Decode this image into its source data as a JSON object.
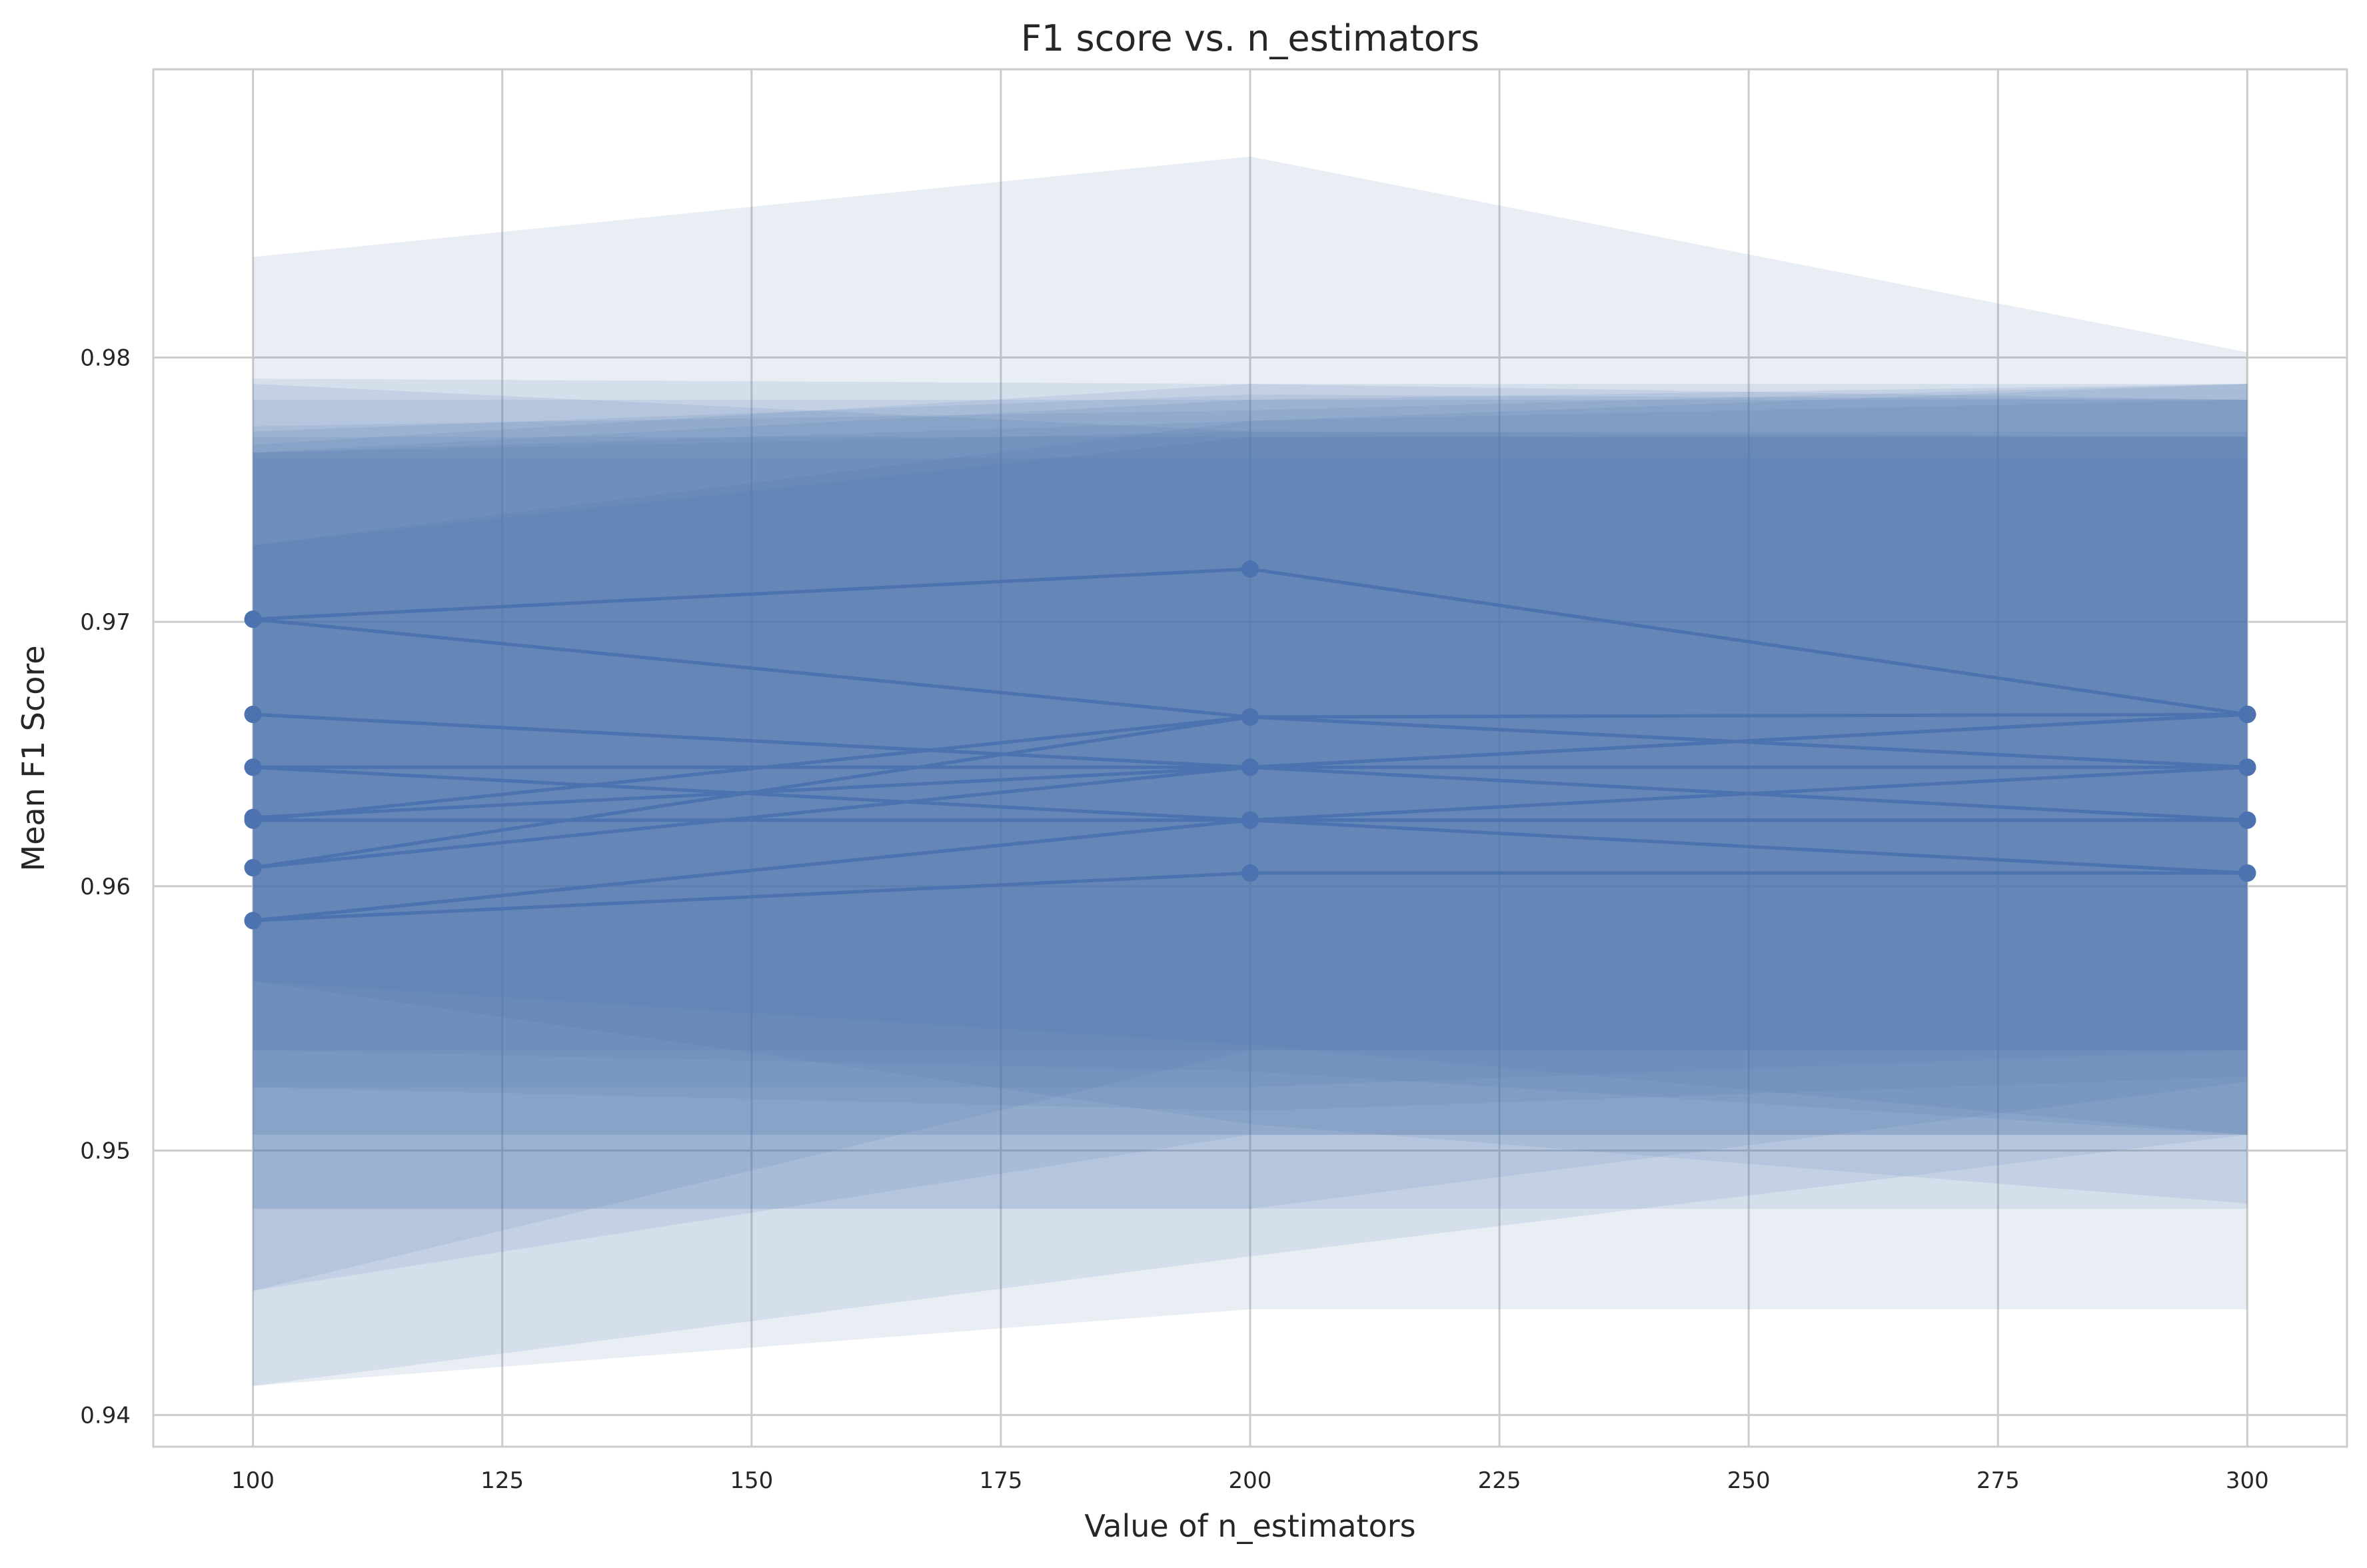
{
  "chart_data": {
    "type": "line",
    "title": "F1 score vs. n_estimators",
    "xlabel": "Value of n_estimators",
    "ylabel": "Mean F1 Score",
    "xlim": [
      90,
      310
    ],
    "ylim": [
      0.9388,
      0.9909
    ],
    "x_ticks": [
      100,
      125,
      150,
      175,
      200,
      225,
      250,
      275,
      300
    ],
    "y_ticks": [
      0.94,
      0.95,
      0.96,
      0.97,
      0.98
    ],
    "x_tick_labels": [
      "100",
      "125",
      "150",
      "175",
      "200",
      "225",
      "250",
      "275",
      "300"
    ],
    "y_tick_labels": [
      "0.94",
      "0.95",
      "0.96",
      "0.97",
      "0.98"
    ],
    "x": [
      100,
      200,
      300
    ],
    "grid": true,
    "colors": {
      "line": "#4c72b0",
      "band": "#4c72b0",
      "grid": "#cccccc",
      "spine": "#cccccc"
    },
    "series": [
      {
        "values": [
          0.9701,
          0.972,
          0.9665
        ],
        "band_low": [
          0.9564,
          0.951,
          0.948
        ],
        "band_high": [
          0.9838,
          0.9876,
          0.9802
        ]
      },
      {
        "values": [
          0.9701,
          0.9664,
          0.9645
        ],
        "band_low": [
          0.9564,
          0.954,
          0.9506
        ],
        "band_high": [
          0.9792,
          0.979,
          0.9784
        ]
      },
      {
        "values": [
          0.9665,
          0.9645,
          0.9625
        ],
        "band_low": [
          0.9538,
          0.953,
          0.9506
        ],
        "band_high": [
          0.979,
          0.9772,
          0.977
        ]
      },
      {
        "values": [
          0.9665,
          0.9645,
          0.9665
        ],
        "band_low": [
          0.9524,
          0.9515,
          0.9528
        ],
        "band_high": [
          0.9774,
          0.978,
          0.979
        ]
      },
      {
        "values": [
          0.9645,
          0.9645,
          0.9645
        ],
        "band_low": [
          0.9538,
          0.9538,
          0.9538
        ],
        "band_high": [
          0.977,
          0.977,
          0.977
        ]
      },
      {
        "values": [
          0.9645,
          0.9625,
          0.9605
        ],
        "band_low": [
          0.9506,
          0.9506,
          0.9506
        ],
        "band_high": [
          0.9784,
          0.9784,
          0.9784
        ]
      },
      {
        "values": [
          0.9626,
          0.9645,
          0.9665
        ],
        "band_low": [
          0.9524,
          0.9524,
          0.9538
        ],
        "band_high": [
          0.9764,
          0.9776,
          0.979
        ]
      },
      {
        "values": [
          0.9625,
          0.9625,
          0.9625
        ],
        "band_low": [
          0.9506,
          0.9506,
          0.9506
        ],
        "band_high": [
          0.9762,
          0.9762,
          0.9762
        ]
      },
      {
        "values": [
          0.9625,
          0.9664,
          0.9645
        ],
        "band_low": [
          0.9478,
          0.9478,
          0.9478
        ],
        "band_high": [
          0.9772,
          0.9786,
          0.9784
        ]
      },
      {
        "values": [
          0.9607,
          0.9664,
          0.9665
        ],
        "band_low": [
          0.9447,
          0.9538,
          0.9538
        ],
        "band_high": [
          0.9767,
          0.979,
          0.979
        ]
      },
      {
        "values": [
          0.9607,
          0.9645,
          0.9665
        ],
        "band_low": [
          0.9478,
          0.9478,
          0.9526
        ],
        "band_high": [
          0.9764,
          0.9784,
          0.979
        ]
      },
      {
        "values": [
          0.9587,
          0.9625,
          0.9645
        ],
        "band_low": [
          0.9411,
          0.946,
          0.9506
        ],
        "band_high": [
          0.9729,
          0.9776,
          0.9784
        ]
      },
      {
        "values": [
          0.9587,
          0.9605,
          0.9605
        ],
        "band_low": [
          0.9411,
          0.944,
          0.944
        ],
        "band_high": [
          0.9729,
          0.977,
          0.977
        ]
      },
      {
        "values": [
          0.9587,
          0.9625,
          0.9625
        ],
        "band_low": [
          0.9447,
          0.9506,
          0.9506
        ],
        "band_high": [
          0.9764,
          0.9772,
          0.9772
        ]
      }
    ]
  }
}
